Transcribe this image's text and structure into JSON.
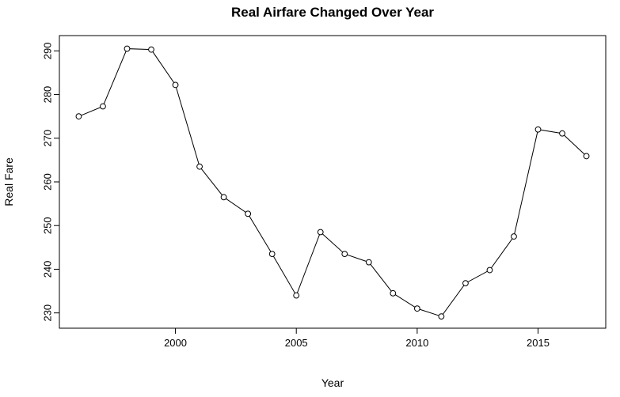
{
  "chart_data": {
    "type": "line",
    "title": "Real Airfare Changed Over Year",
    "xlabel": "Year",
    "ylabel": "Real Fare",
    "x": [
      1996,
      1997,
      1998,
      1999,
      2000,
      2001,
      2002,
      2003,
      2004,
      2005,
      2006,
      2007,
      2008,
      2009,
      2010,
      2011,
      2012,
      2013,
      2014,
      2015,
      2016,
      2017
    ],
    "series": [
      {
        "values": [
          275.0,
          277.3,
          290.5,
          290.3,
          282.2,
          263.5,
          256.5,
          252.7,
          243.5,
          234.0,
          248.5,
          243.5,
          241.6,
          234.5,
          231.0,
          229.2,
          236.8,
          239.8,
          247.5,
          272.0,
          271.1,
          265.9
        ]
      }
    ],
    "xlim": [
      1995.2,
      2017.8
    ],
    "ylim": [
      226.5,
      293.5
    ],
    "xticks": [
      2000,
      2005,
      2010,
      2015
    ],
    "xtick_labels": [
      "2000",
      "2005",
      "2010",
      "2015"
    ],
    "yticks": [
      230,
      240,
      250,
      260,
      270,
      280,
      290
    ],
    "ytick_labels": [
      "230",
      "240",
      "250",
      "260",
      "270",
      "280",
      "290"
    ],
    "marker": "open-circle",
    "line_color": "#000000",
    "grid": false,
    "legend": false
  }
}
